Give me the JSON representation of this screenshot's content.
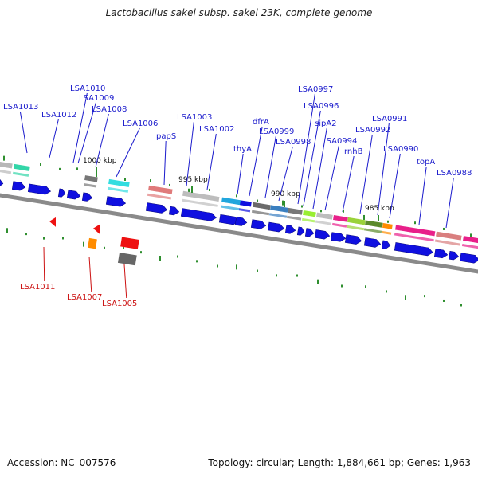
{
  "title": "Lactobacillus sakei subsp. sakei 23K, complete genome",
  "footer": {
    "accession": "Accession: NC_007576",
    "topology": "Topology: circular; Length: 1,884,661 bp; Genes: 1,963"
  },
  "colors": {
    "forward_label": "#1a1acc",
    "reverse_label": "#cc1111",
    "backbone": "#8a8a8a",
    "cds": "#1010e0",
    "tick": "#2f8f2f"
  },
  "scale_labels": [
    "1000 kbp",
    "995 kbp",
    "990 kbp",
    "985 kbp"
  ],
  "forward_genes": [
    "LSA1013",
    "LSA1012",
    "LSA1010",
    "LSA1009",
    "LSA1008",
    "LSA1006",
    "papS",
    "LSA1003",
    "LSA1002",
    "thyA",
    "dfrA",
    "LSA0999",
    "LSA0998",
    "LSA0997",
    "LSA0996",
    "sipA2",
    "LSA0994",
    "rnhB",
    "LSA0992",
    "LSA0991",
    "LSA0990",
    "topA",
    "LSA0988"
  ],
  "reverse_genes": [
    "LSA1011",
    "LSA1007",
    "LSA1005"
  ]
}
